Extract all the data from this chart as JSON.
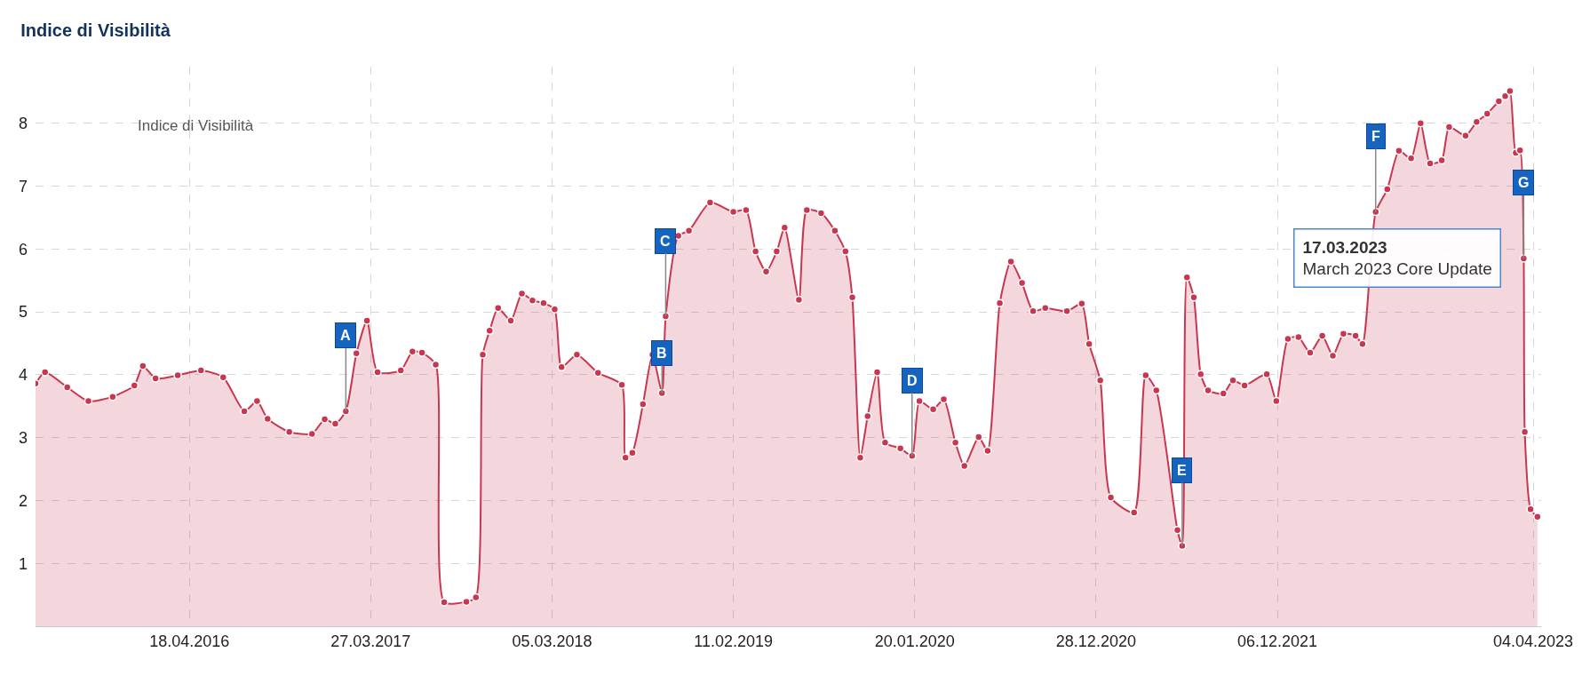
{
  "chart_data": {
    "type": "area",
    "title": "Indice di Visibilità",
    "x": [
      "2015-07-02",
      "2015-07-20",
      "2015-08-31",
      "2015-10-10",
      "2015-11-25",
      "2016-01-05",
      "2016-01-21",
      "2016-02-14",
      "2016-03-27",
      "2016-05-10",
      "2016-06-21",
      "2016-07-31",
      "2016-08-24",
      "2016-09-13",
      "2016-10-24",
      "2016-12-06",
      "2016-12-30",
      "2017-01-19",
      "2017-02-08",
      "2017-02-28",
      "2017-03-20",
      "2017-04-09",
      "2017-05-23",
      "2017-06-14",
      "2017-07-02",
      "2017-07-28",
      "2017-08-13",
      "2017-09-24",
      "2017-10-12",
      "2017-10-25",
      "2017-11-07",
      "2017-11-23",
      "2017-12-17",
      "2018-01-07",
      "2018-01-27",
      "2018-02-17",
      "2018-03-10",
      "2018-03-23",
      "2018-04-21",
      "2018-05-31",
      "2018-07-15",
      "2018-07-22",
      "2018-08-04",
      "2018-08-24",
      "2018-09-11",
      "2018-09-29",
      "2018-10-06",
      "2018-10-30",
      "2018-11-19",
      "2018-12-29",
      "2019-02-11",
      "2019-03-07",
      "2019-03-25",
      "2019-04-14",
      "2019-05-04",
      "2019-05-19",
      "2019-06-15",
      "2019-06-30",
      "2019-07-27",
      "2019-08-22",
      "2019-09-11",
      "2019-09-24",
      "2019-10-09",
      "2019-10-23",
      "2019-11-10",
      "2019-11-25",
      "2019-12-24",
      "2020-01-15",
      "2020-01-29",
      "2020-02-24",
      "2020-03-15",
      "2020-04-06",
      "2020-04-23",
      "2020-05-20",
      "2020-06-06",
      "2020-06-29",
      "2020-07-20",
      "2020-08-10",
      "2020-08-31",
      "2020-09-23",
      "2020-11-03",
      "2020-12-01",
      "2020-12-15",
      "2021-01-05",
      "2021-01-25",
      "2021-03-10",
      "2021-04-01",
      "2021-04-21",
      "2021-05-31",
      "2021-06-09",
      "2021-06-18",
      "2021-07-01",
      "2021-07-14",
      "2021-07-28",
      "2021-08-26",
      "2021-09-13",
      "2021-10-05",
      "2021-11-16",
      "2021-12-04",
      "2021-12-26",
      "2022-01-15",
      "2022-02-06",
      "2022-03-01",
      "2022-03-21",
      "2022-04-10",
      "2022-05-03",
      "2022-05-16",
      "2022-06-10",
      "2022-07-02",
      "2022-07-24",
      "2022-08-16",
      "2022-09-03",
      "2022-09-21",
      "2022-10-13",
      "2022-10-27",
      "2022-11-27",
      "2022-12-18",
      "2023-01-07",
      "2023-01-29",
      "2023-02-10",
      "2023-02-19",
      "2023-03-02",
      "2023-03-10",
      "2023-03-17",
      "2023-03-19",
      "2023-03-30",
      "2023-04-12"
    ],
    "series": [
      {
        "color": "#c8374f",
        "values": [
          3.86,
          4.04,
          3.8,
          3.58,
          3.65,
          3.83,
          4.14,
          3.94,
          3.99,
          4.07,
          3.96,
          3.42,
          3.58,
          3.3,
          3.09,
          3.06,
          3.29,
          3.22,
          3.42,
          4.34,
          4.86,
          4.04,
          4.07,
          4.37,
          4.35,
          4.16,
          0.38,
          0.39,
          0.46,
          4.32,
          4.7,
          5.06,
          4.86,
          5.29,
          5.18,
          5.14,
          5.04,
          4.12,
          4.32,
          4.03,
          3.84,
          2.68,
          2.76,
          3.53,
          4.32,
          3.71,
          4.93,
          6.21,
          6.29,
          6.74,
          6.59,
          6.62,
          5.96,
          5.64,
          5.96,
          6.34,
          5.19,
          6.62,
          6.57,
          6.29,
          5.96,
          5.23,
          2.68,
          3.34,
          4.04,
          2.92,
          2.83,
          2.71,
          3.58,
          3.45,
          3.61,
          2.92,
          2.55,
          3.01,
          2.79,
          5.14,
          5.8,
          5.46,
          5.01,
          5.06,
          5.01,
          5.13,
          4.49,
          3.91,
          2.05,
          1.81,
          3.99,
          3.75,
          1.53,
          1.28,
          5.55,
          5.23,
          4.01,
          3.75,
          3.7,
          3.91,
          3.83,
          4.01,
          3.58,
          4.57,
          4.6,
          4.35,
          4.62,
          4.3,
          4.65,
          4.62,
          4.49,
          6.59,
          6.95,
          7.56,
          7.44,
          8.0,
          7.36,
          7.41,
          7.94,
          7.8,
          8.02,
          8.15,
          8.35,
          8.43,
          8.51,
          7.53,
          7.57,
          5.85,
          3.09,
          1.86,
          1.74
        ]
      }
    ],
    "xlim": [
      "2015-07-02",
      "2023-04-19"
    ],
    "xticks": [
      {
        "value": "2016-04-18",
        "label": "18.04.2016"
      },
      {
        "value": "2017-03-27",
        "label": "27.03.2017"
      },
      {
        "value": "2018-03-05",
        "label": "05.03.2018"
      },
      {
        "value": "2019-02-11",
        "label": "11.02.2019"
      },
      {
        "value": "2020-01-20",
        "label": "20.01.2020"
      },
      {
        "value": "2020-12-28",
        "label": "28.12.2020"
      },
      {
        "value": "2021-12-06",
        "label": "06.12.2021"
      },
      {
        "value": "2023-04-04",
        "label": "04.04.2023"
      }
    ],
    "ylim": [
      0,
      8.9
    ],
    "yticks": [
      1,
      2,
      3,
      4,
      5,
      6,
      7,
      8
    ],
    "grid": true,
    "marker": "circle",
    "line_style": "solid",
    "legend_title": "Indice di Visibilità",
    "annotations": [
      {
        "text": "A",
        "x": "2017-02-08",
        "y": 3.42
      },
      {
        "text": "B",
        "x": "2018-09-29",
        "y": 3.71
      },
      {
        "text": "C",
        "x": "2018-10-06",
        "y": 4.93
      },
      {
        "text": "D",
        "x": "2020-01-15",
        "y": 2.71
      },
      {
        "text": "E",
        "x": "2021-06-09",
        "y": 1.28
      },
      {
        "text": "F",
        "x": "2022-06-10",
        "y": 6.59
      },
      {
        "text": "G",
        "x": "2023-03-17",
        "y": 5.85
      },
      {
        "text": "17.03.2023\nMarch 2023 Core Update",
        "x": "2023-03-17",
        "y": 5.85
      }
    ]
  }
}
